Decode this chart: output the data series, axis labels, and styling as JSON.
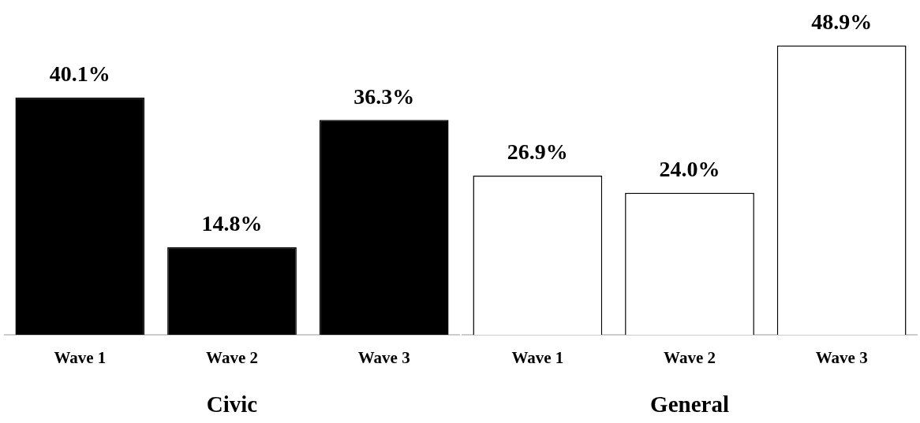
{
  "chart_data": [
    {
      "type": "bar",
      "xlabel": "Civic",
      "categories": [
        "Wave 1",
        "Wave 2",
        "Wave 3"
      ],
      "values": [
        40.1,
        14.8,
        36.3
      ],
      "color": "#000000",
      "value_labels": [
        "40.1%",
        "14.8%",
        "36.3%"
      ],
      "grid": false,
      "legend": false
    },
    {
      "type": "bar",
      "xlabel": "General",
      "categories": [
        "Wave 1",
        "Wave 2",
        "Wave 3"
      ],
      "values": [
        26.9,
        24.0,
        48.9
      ],
      "color": "#ffffff",
      "value_labels": [
        "26.9%",
        "24.0%",
        "48.9%"
      ],
      "grid": false,
      "legend": false
    }
  ]
}
